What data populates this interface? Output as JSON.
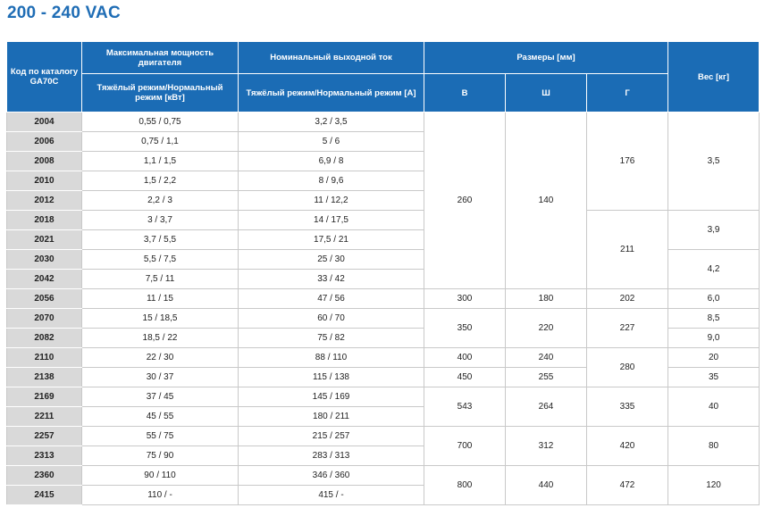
{
  "title": "200 - 240 VAC",
  "headers": {
    "code": "Код по каталогу GA70C",
    "power": "Максимальная мощность двигателя",
    "power_sub": "Тяжёлый режим/Нормальный режим [кВт]",
    "current": "Номинальный выходной ток",
    "current_sub": "Тяжёлый режим/Нормальный режим [А]",
    "dims": "Размеры [мм]",
    "dim_h": "В",
    "dim_w": "Ш",
    "dim_d": "Г",
    "weight": "Вес [кг]"
  },
  "rows": [
    {
      "code": "2004",
      "power": "0,55 / 0,75",
      "current": "3,2 / 3,5"
    },
    {
      "code": "2006",
      "power": "0,75 / 1,1",
      "current": "5 / 6"
    },
    {
      "code": "2008",
      "power": "1,1 / 1,5",
      "current": "6,9 / 8"
    },
    {
      "code": "2010",
      "power": "1,5 / 2,2",
      "current": "8 / 9,6"
    },
    {
      "code": "2012",
      "power": "2,2 / 3",
      "current": "11 / 12,2"
    },
    {
      "code": "2018",
      "power": "3 / 3,7",
      "current": "14 / 17,5"
    },
    {
      "code": "2021",
      "power": "3,7 / 5,5",
      "current": "17,5 / 21"
    },
    {
      "code": "2030",
      "power": "5,5 / 7,5",
      "current": "25 / 30"
    },
    {
      "code": "2042",
      "power": "7,5 / 11",
      "current": "33 / 42"
    },
    {
      "code": "2056",
      "power": "11 / 15",
      "current": "47 / 56"
    },
    {
      "code": "2070",
      "power": "15 / 18,5",
      "current": "60 / 70"
    },
    {
      "code": "2082",
      "power": "18,5 / 22",
      "current": "75 / 82"
    },
    {
      "code": "2110",
      "power": "22 / 30",
      "current": "88 / 110"
    },
    {
      "code": "2138",
      "power": "30 / 37",
      "current": "115 / 138"
    },
    {
      "code": "2169",
      "power": "37 / 45",
      "current": "145 / 169"
    },
    {
      "code": "2211",
      "power": "45 / 55",
      "current": "180 / 211"
    },
    {
      "code": "2257",
      "power": "55 / 75",
      "current": "215 / 257"
    },
    {
      "code": "2313",
      "power": "75 / 90",
      "current": "283 / 313"
    },
    {
      "code": "2360",
      "power": "90 / 110",
      "current": "346 / 360"
    },
    {
      "code": "2415",
      "power": "110 / -",
      "current": "415 / -"
    }
  ],
  "merged": {
    "h260": "260",
    "w140": "140",
    "d176": "176",
    "wt35": "3,5",
    "wt39": "3,9",
    "d211": "211",
    "wt42": "4,2",
    "h300": "300",
    "w180": "180",
    "d202": "202",
    "wt60": "6,0",
    "h350": "350",
    "w220": "220",
    "d227": "227",
    "wt85": "8,5",
    "wt90": "9,0",
    "h400": "400",
    "w240": "240",
    "d280": "280",
    "wt20": "20",
    "h450": "450",
    "w255": "255",
    "wt35kg": "35",
    "h543": "543",
    "w264": "264",
    "d335": "335",
    "wt40": "40",
    "h700": "700",
    "w312": "312",
    "d420": "420",
    "wt80": "80",
    "h800": "800",
    "w440": "440",
    "d472": "472",
    "wt120": "120"
  }
}
